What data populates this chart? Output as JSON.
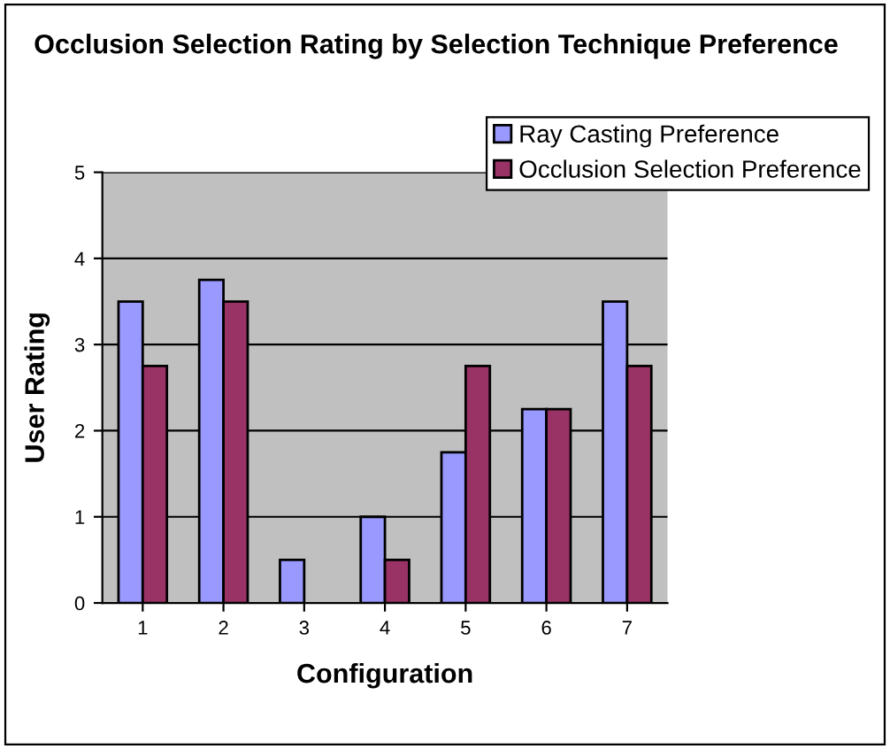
{
  "chart_data": {
    "type": "bar",
    "title": "Occlusion Selection Rating by Selection Technique Preference",
    "xlabel": "Configuration",
    "ylabel": "User Rating",
    "categories": [
      "1",
      "2",
      "3",
      "4",
      "5",
      "6",
      "7"
    ],
    "series": [
      {
        "name": "Ray Casting Preference",
        "color": "#9999ff",
        "values": [
          3.5,
          3.75,
          0.5,
          1,
          1.75,
          2.25,
          3.5
        ]
      },
      {
        "name": "Occlusion Selection Preference",
        "color": "#993366",
        "values": [
          2.75,
          3.5,
          null,
          0.5,
          2.75,
          2.25,
          2.75
        ]
      }
    ],
    "ylim": [
      0,
      5
    ],
    "yticks": [
      0,
      1,
      2,
      3,
      4,
      5
    ],
    "grid": "y",
    "legend": "top right"
  }
}
